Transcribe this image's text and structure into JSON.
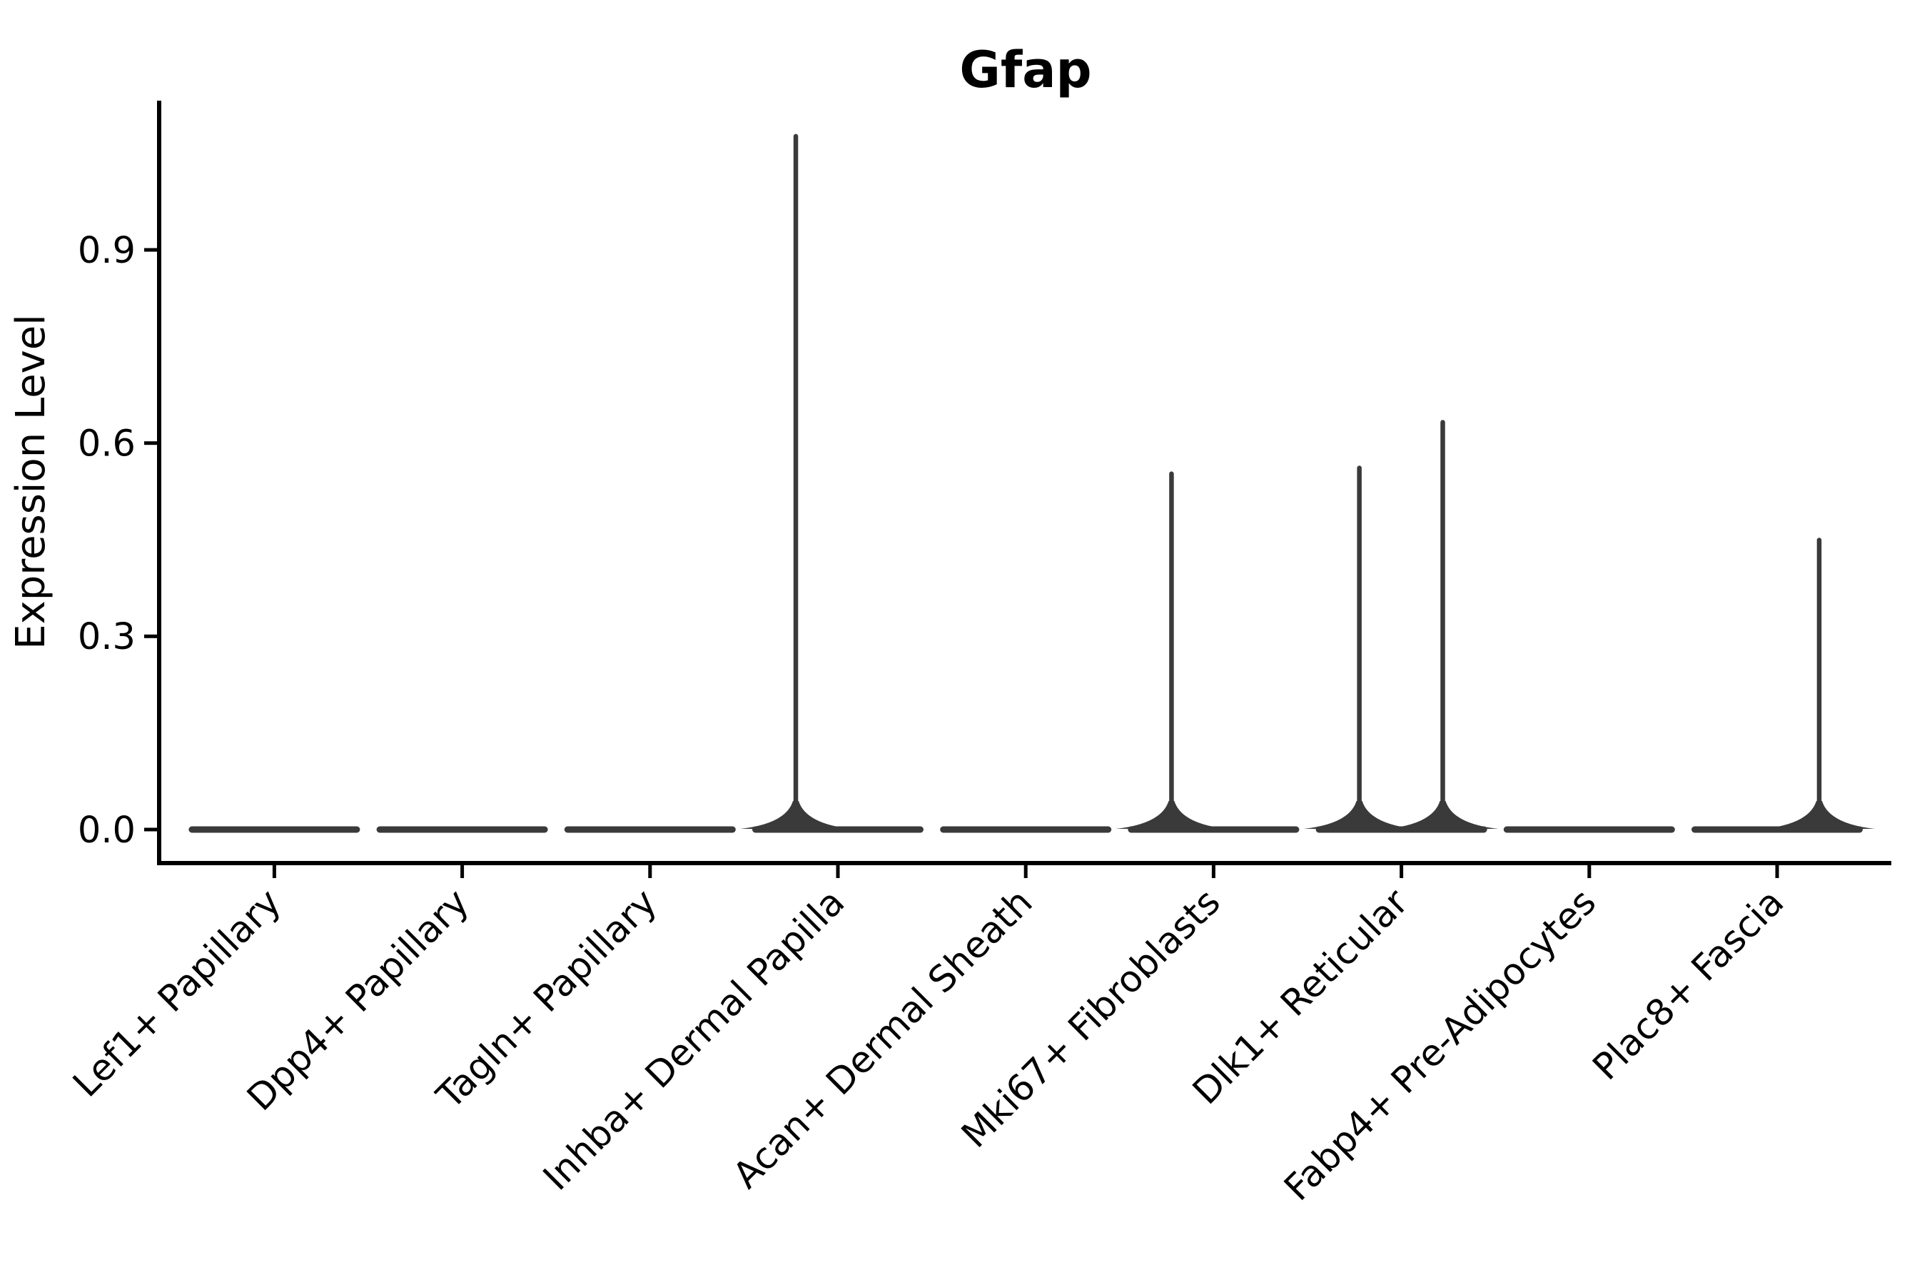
{
  "figure": {
    "background": "#ffffff",
    "title": "Gfap"
  },
  "colors": {
    "violin": "#3a3a3a",
    "axis": "#000000",
    "text": "#000000"
  },
  "chart_data": {
    "type": "violin",
    "title": "Gfap",
    "xlabel": "",
    "ylabel": "Expression Level",
    "grid": false,
    "legend": null,
    "ylim": [
      -0.052,
      1.132
    ],
    "yticks": [
      0.0,
      0.3,
      0.6,
      0.9
    ],
    "ytick_labels": [
      "0.0",
      "0.3",
      "0.6",
      "0.9"
    ],
    "categories": [
      "Lef1+ Papillary",
      "Dpp4+ Papillary",
      "Tagln+ Papillary",
      "Inhba+ Dermal Papilla",
      "Acan+ Dermal Sheath",
      "Mki67+ Fibroblasts",
      "Dlk1+ Reticular",
      "Fabp4+ Pre-Adipocytes",
      "Plac8+ Fascia"
    ],
    "xtick_rotation_deg": 45,
    "violins": [
      {
        "category": "Lef1+ Papillary",
        "base_value": 0.0,
        "base_halfwidth": 0.456,
        "spikes": []
      },
      {
        "category": "Dpp4+ Papillary",
        "base_value": 0.0,
        "base_halfwidth": 0.456,
        "spikes": []
      },
      {
        "category": "Tagln+ Papillary",
        "base_value": 0.0,
        "base_halfwidth": 0.456,
        "spikes": []
      },
      {
        "category": "Inhba+ Dermal Papilla",
        "base_value": 0.0,
        "base_halfwidth": 0.456,
        "spikes": [
          {
            "dx": -0.224,
            "max": 1.08
          }
        ]
      },
      {
        "category": "Acan+ Dermal Sheath",
        "base_value": 0.0,
        "base_halfwidth": 0.456,
        "spikes": []
      },
      {
        "category": "Mki67+ Fibroblasts",
        "base_value": 0.0,
        "base_halfwidth": 0.456,
        "spikes": [
          {
            "dx": -0.224,
            "max": 0.556
          }
        ]
      },
      {
        "category": "Dlk1+ Reticular",
        "base_value": 0.0,
        "base_halfwidth": 0.456,
        "spikes": [
          {
            "dx": -0.224,
            "max": 0.565
          },
          {
            "dx": 0.22,
            "max": 0.636
          }
        ]
      },
      {
        "category": "Fabp4+ Pre-Adipocytes",
        "base_value": 0.0,
        "base_halfwidth": 0.456,
        "spikes": []
      },
      {
        "category": "Plac8+ Fascia",
        "base_value": 0.0,
        "base_halfwidth": 0.456,
        "spikes": [
          {
            "dx": 0.224,
            "max": 0.453
          }
        ]
      }
    ]
  }
}
